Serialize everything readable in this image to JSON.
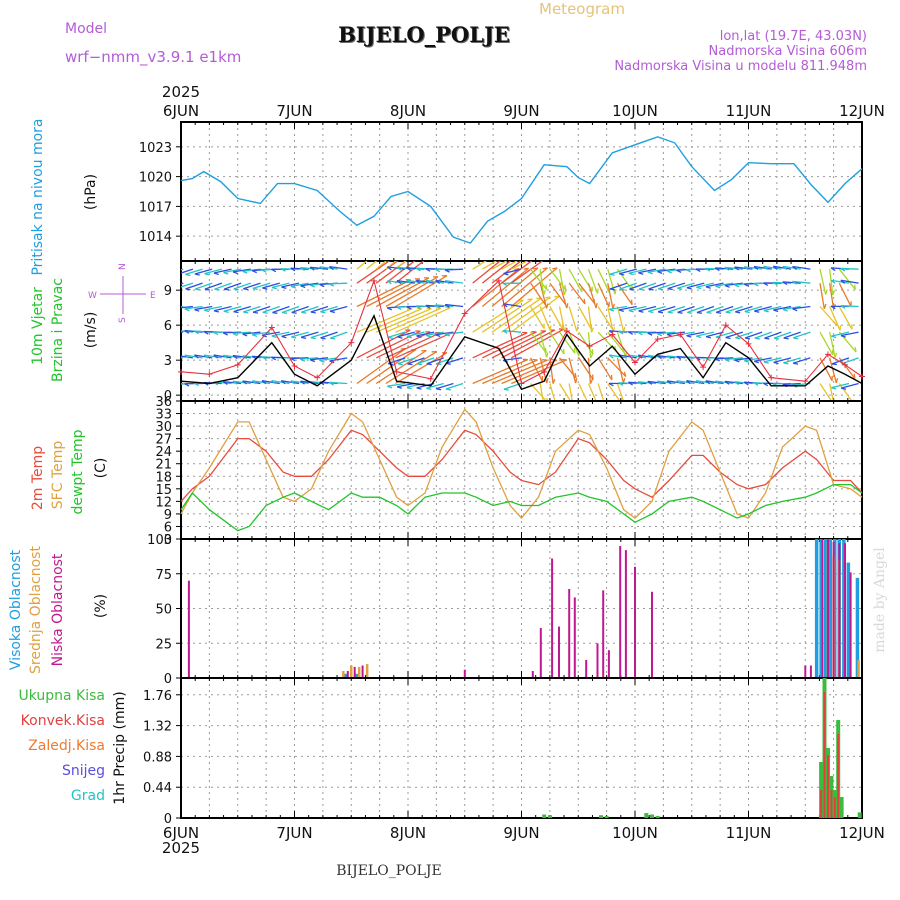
{
  "header": {
    "title": "BIJELO_POLJE",
    "model_label": "Model",
    "model_name": "wrf−nmm_v3.9.1  e1km",
    "meteogram_label": "Meteogram",
    "lonlat": "lon,lat (19.7E, 43.03N)",
    "altitude": "Nadmorska Visina 606m",
    "model_altitude": "Nadmorska Visina u modelu 811.948m",
    "footer_station": "BIJELO_POLJE",
    "watermark": "made by Angel",
    "year": "2025"
  },
  "colors": {
    "pressure": "#1e9fe0",
    "temp2m": "#e84b3c",
    "sfc": "#e0a040",
    "dewpt": "#22c42a",
    "high_cloud": "#1e9fe0",
    "mid_cloud": "#e0a040",
    "low_cloud": "#c01890",
    "rain_total": "#3dbb3d",
    "rain_conv": "#e24040",
    "freezing": "#f07a30",
    "snow": "#5a4ee0",
    "hail": "#22c4c4",
    "wind_line": "#000000",
    "gust": "#e83040"
  },
  "chart_data": [
    {
      "type": "line",
      "panel": "pressure",
      "ylabel_left": "Pritisak na nivou mora",
      "ylabel_unit": "(hPa)",
      "xlabels_top": [
        "6JUN",
        "7JUN",
        "8JUN",
        "9JUN",
        "10JUN",
        "11JUN",
        "12JUN"
      ],
      "ylim": [
        1011.5,
        1025.5
      ],
      "yticks": [
        1014,
        1017,
        1020,
        1023
      ],
      "x": [
        0,
        0.1,
        0.2,
        0.35,
        0.5,
        0.7,
        0.85,
        1.0,
        1.2,
        1.4,
        1.55,
        1.7,
        1.85,
        2.0,
        2.2,
        2.4,
        2.55,
        2.7,
        2.85,
        3.0,
        3.2,
        3.4,
        3.5,
        3.6,
        3.8,
        4.0,
        4.2,
        4.35,
        4.5,
        4.7,
        4.85,
        5.0,
        5.2,
        5.4,
        5.55,
        5.7,
        5.85,
        6.0
      ],
      "series": [
        {
          "values": [
            1019.6,
            1019.8,
            1020.5,
            1019.5,
            1017.8,
            1017.3,
            1019.3,
            1019.3,
            1018.6,
            1016.5,
            1015.1,
            1016.0,
            1018.0,
            1018.5,
            1017.0,
            1013.9,
            1013.3,
            1015.5,
            1016.5,
            1017.8,
            1021.2,
            1021.0,
            1019.9,
            1019.3,
            1022.4,
            1023.2,
            1024.0,
            1023.4,
            1021.0,
            1018.6,
            1019.7,
            1021.4,
            1021.3,
            1021.3,
            1019.2,
            1017.4,
            1019.3,
            1020.8
          ]
        }
      ]
    },
    {
      "type": "line",
      "panel": "wind",
      "ylabel_left": "10m Vjetar",
      "ylabel_left2": "Brzina i Pravac",
      "ylabel_unit": "(m/s)",
      "compass": {
        "north": "N",
        "south": "S",
        "east": "E",
        "west": "W"
      },
      "ylim": [
        -0.5,
        11.5
      ],
      "yticks": [
        0,
        3,
        6,
        9
      ],
      "x": [
        0,
        0.25,
        0.5,
        0.8,
        1.0,
        1.2,
        1.5,
        1.7,
        1.9,
        2.2,
        2.5,
        2.8,
        3.0,
        3.2,
        3.4,
        3.6,
        3.8,
        4.0,
        4.2,
        4.4,
        4.6,
        4.8,
        5.0,
        5.2,
        5.5,
        5.7,
        5.85,
        6.0
      ],
      "series": [
        {
          "values": [
            1.2,
            1.0,
            1.5,
            4.5,
            1.8,
            0.8,
            3.0,
            6.8,
            1.2,
            0.8,
            5.0,
            4.0,
            0.5,
            1.2,
            5.2,
            2.5,
            4.2,
            1.8,
            3.5,
            4.0,
            1.5,
            4.5,
            3.2,
            0.8,
            0.8,
            2.5,
            1.8,
            1.0
          ]
        },
        {
          "values": [
            2.0,
            1.8,
            2.6,
            5.8,
            2.5,
            1.5,
            4.5,
            9.8,
            2.0,
            1.4,
            7.0,
            9.8,
            1.0,
            2.0,
            5.5,
            4.2,
            5.2,
            2.8,
            4.8,
            5.2,
            2.4,
            6.0,
            4.4,
            1.5,
            1.2,
            3.5,
            2.6,
            1.6
          ]
        }
      ]
    },
    {
      "type": "line",
      "panel": "temperature",
      "ylabel_left": "2m Temp",
      "ylabel_left2": "SFC Temp",
      "ylabel_left3": "dewpt Temp",
      "ylabel_unit": "(C)",
      "ylim": [
        3,
        36
      ],
      "yticks": [
        3,
        6,
        9,
        12,
        15,
        18,
        21,
        24,
        27,
        30,
        33,
        36
      ],
      "x": [
        0,
        0.1,
        0.25,
        0.5,
        0.6,
        0.75,
        0.9,
        1.0,
        1.15,
        1.3,
        1.5,
        1.6,
        1.75,
        1.9,
        2.0,
        2.15,
        2.3,
        2.5,
        2.6,
        2.75,
        2.9,
        3.0,
        3.15,
        3.3,
        3.5,
        3.6,
        3.75,
        3.9,
        4.0,
        4.15,
        4.3,
        4.5,
        4.6,
        4.75,
        4.9,
        5.0,
        5.15,
        5.3,
        5.5,
        5.6,
        5.75,
        5.9,
        6.0
      ],
      "series": [
        {
          "name": "2m Temp",
          "values": [
            12,
            15,
            18,
            27,
            27,
            24,
            19,
            18,
            18,
            22,
            29,
            28,
            24,
            20,
            18,
            18,
            22,
            29,
            28,
            24,
            19,
            17,
            16,
            19,
            27,
            26,
            22,
            17,
            15,
            13,
            17,
            23,
            23,
            19,
            16,
            15,
            16,
            20,
            24,
            22,
            17,
            17,
            14
          ]
        },
        {
          "name": "SFC Temp",
          "values": [
            9,
            14,
            20,
            31,
            31,
            22,
            13,
            12,
            15,
            24,
            33,
            31,
            22,
            13,
            11,
            14,
            25,
            34,
            31,
            20,
            11,
            8,
            13,
            24,
            29,
            28,
            20,
            10,
            8,
            12,
            24,
            31,
            29,
            19,
            9,
            8,
            14,
            25,
            30,
            29,
            16,
            15,
            13
          ]
        },
        {
          "name": "dewpt Temp",
          "values": [
            10,
            14,
            10,
            5,
            6,
            11,
            13,
            14,
            12,
            10,
            14,
            13,
            13,
            11,
            9,
            13,
            14,
            14,
            13,
            11,
            12,
            11,
            11,
            13,
            14,
            13,
            12,
            9,
            7,
            9,
            12,
            13,
            12,
            10,
            8,
            9,
            11,
            12,
            13,
            14,
            16,
            16,
            14
          ]
        }
      ]
    },
    {
      "type": "bar",
      "panel": "cloud",
      "ylabel_left": "Visoka Oblacnost",
      "ylabel_left2": "Srednja Oblacnost",
      "ylabel_left3": "Niska Oblacnost",
      "ylabel_unit": "(%)",
      "ylim": [
        0,
        100
      ],
      "yticks": [
        0,
        25,
        50,
        75,
        100
      ],
      "series": [
        {
          "name": "Niska",
          "x": [
            0.07,
            1.47,
            1.53,
            1.6,
            2.5,
            3.1,
            3.17,
            3.27,
            3.33,
            3.42,
            3.47,
            3.57,
            3.67,
            3.72,
            3.77,
            3.87,
            3.92,
            4.0,
            4.15,
            5.5,
            5.55,
            5.65,
            5.7,
            5.75,
            5.8,
            5.85,
            5.9
          ],
          "values": [
            70,
            5,
            8,
            9,
            6,
            5,
            36,
            86,
            37,
            64,
            58,
            13,
            25,
            63,
            20,
            95,
            92,
            80,
            62,
            9,
            9,
            100,
            100,
            98,
            97,
            97,
            76
          ]
        },
        {
          "name": "Srednja",
          "x": [
            1.43,
            1.5,
            1.57,
            1.64,
            5.65,
            5.7,
            5.75,
            5.8,
            5.97
          ],
          "values": [
            5,
            9,
            8,
            10,
            98,
            98,
            88,
            85,
            13
          ]
        },
        {
          "name": "Visoka",
          "x": [
            1.45,
            1.55,
            5.6,
            5.64,
            5.68,
            5.72,
            5.76,
            5.8,
            5.84,
            5.88,
            5.96
          ],
          "values": [
            3,
            3,
            100,
            100,
            100,
            100,
            100,
            100,
            100,
            83,
            72
          ]
        }
      ]
    },
    {
      "type": "bar",
      "panel": "precipitation",
      "ylabel_left": "Ukupna Kisa",
      "ylabel_left2": "Konvek.Kisa",
      "ylabel_left3": "Zaledj.Kisa",
      "ylabel_left4": "Snijeg",
      "ylabel_left5": "Grad",
      "ylabel_unit": "1hr Precip (mm)",
      "ylim": [
        0,
        2.0
      ],
      "yticks": [
        0,
        0.44,
        0.88,
        1.32,
        1.76
      ],
      "xlabels_bottom": [
        "6JUN",
        "7JUN",
        "8JUN",
        "9JUN",
        "10JUN",
        "11JUN",
        "12JUN"
      ],
      "series": [
        {
          "name": "Ukupna Kisa",
          "x": [
            3.2,
            3.25,
            3.7,
            3.75,
            4.1,
            4.15,
            4.2,
            5.64,
            5.67,
            5.7,
            5.73,
            5.76,
            5.79,
            5.82,
            5.98
          ],
          "values": [
            0.05,
            0.04,
            0.04,
            0.03,
            0.07,
            0.05,
            0.03,
            0.8,
            2.0,
            1.0,
            0.6,
            0.4,
            1.4,
            0.3,
            0.08
          ]
        },
        {
          "name": "Konvek.Kisa",
          "x": [
            5.64,
            5.67,
            5.7,
            5.73,
            5.76,
            5.79
          ],
          "values": [
            0.4,
            1.8,
            0.9,
            0.4,
            0.3,
            1.2
          ]
        }
      ]
    }
  ]
}
